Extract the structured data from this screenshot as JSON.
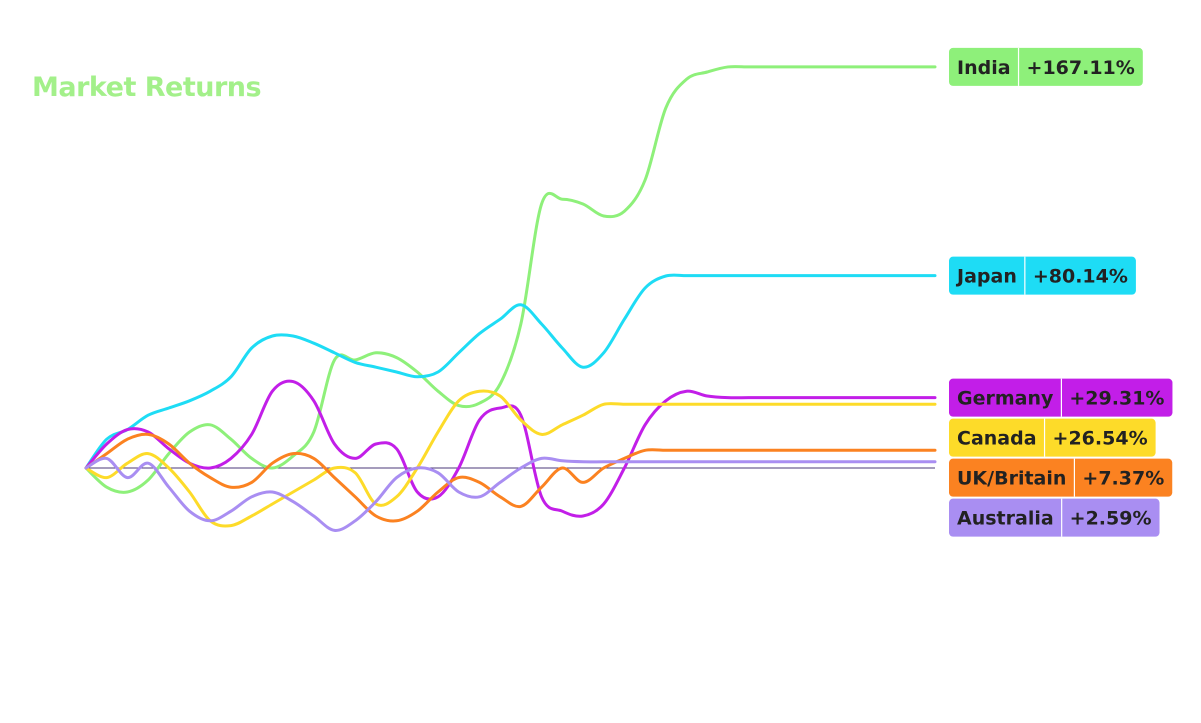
{
  "chart_data": {
    "type": "line",
    "title": "Market Returns",
    "title_color": "#a3f08a",
    "xlabel": "",
    "ylabel": "",
    "x": [
      0,
      1,
      2,
      3,
      4,
      5,
      6,
      7,
      8,
      9,
      10,
      11,
      12,
      13,
      14,
      15,
      16,
      17,
      18,
      19,
      20,
      21,
      22,
      23,
      24,
      25,
      26,
      27,
      28,
      29,
      30,
      31,
      32,
      33,
      34,
      35,
      36,
      37,
      38,
      39,
      40,
      41
    ],
    "ylim": [
      -45,
      180
    ],
    "grid": false,
    "zero_line": true,
    "legend": "end-of-line labels",
    "series": [
      {
        "name": "India",
        "label": "+167.11%",
        "color": "#8ef07a",
        "tag_color": "#8ef07a",
        "values": [
          0,
          -8,
          -10,
          -5,
          6,
          15,
          18,
          12,
          4,
          0,
          5,
          15,
          45,
          45,
          48,
          46,
          40,
          32,
          26,
          27,
          35,
          60,
          110,
          112,
          110,
          105,
          107,
          120,
          150,
          162,
          165,
          167.11,
          167.11,
          167.11,
          167.11,
          167.11,
          167.11,
          167.11,
          167.11,
          167.11,
          167.11,
          167.11
        ]
      },
      {
        "name": "Japan",
        "label": "+80.14%",
        "color": "#1edcf5",
        "tag_color": "#1edcf5",
        "values": [
          0,
          12,
          16,
          22,
          25,
          28,
          32,
          38,
          50,
          55,
          55,
          52,
          48,
          44,
          42,
          40,
          38,
          40,
          48,
          56,
          62,
          68,
          60,
          50,
          42,
          48,
          62,
          75,
          80,
          80.14,
          80.14,
          80.14,
          80.14,
          80.14,
          80.14,
          80.14,
          80.14,
          80.14,
          80.14,
          80.14,
          80.14,
          80.14
        ]
      },
      {
        "name": "Germany",
        "label": "+29.31%",
        "color": "#c21ee8",
        "tag_color": "#c21ee8",
        "values": [
          0,
          10,
          16,
          15,
          8,
          2,
          0,
          4,
          14,
          32,
          36,
          28,
          10,
          4,
          10,
          8,
          -10,
          -12,
          0,
          20,
          25,
          22,
          -12,
          -18,
          -20,
          -15,
          0,
          18,
          28,
          32,
          30,
          29.31,
          29.31,
          29.31,
          29.31,
          29.31,
          29.31,
          29.31,
          29.31,
          29.31,
          29.31,
          29.31
        ]
      },
      {
        "name": "Canada",
        "label": "+26.54%",
        "color": "#fddb29",
        "tag_color": "#fddb29",
        "values": [
          0,
          -4,
          2,
          6,
          0,
          -10,
          -22,
          -24,
          -20,
          -15,
          -10,
          -5,
          0,
          -2,
          -15,
          -12,
          0,
          15,
          28,
          32,
          30,
          20,
          14,
          18,
          22,
          26.54,
          26.54,
          26.54,
          26.54,
          26.54,
          26.54,
          26.54,
          26.54,
          26.54,
          26.54,
          26.54,
          26.54,
          26.54,
          26.54,
          26.54,
          26.54,
          26.54
        ]
      },
      {
        "name": "UK/Britain",
        "label": "+7.37%",
        "color": "#fb8221",
        "tag_color": "#fb8221",
        "values": [
          0,
          6,
          12,
          14,
          10,
          2,
          -4,
          -8,
          -6,
          2,
          6,
          4,
          -4,
          -12,
          -20,
          -22,
          -18,
          -10,
          -4,
          -6,
          -12,
          -16,
          -8,
          0,
          -6,
          0,
          4,
          7.37,
          7.37,
          7.37,
          7.37,
          7.37,
          7.37,
          7.37,
          7.37,
          7.37,
          7.37,
          7.37,
          7.37,
          7.37,
          7.37,
          7.37
        ]
      },
      {
        "name": "Australia",
        "label": "+2.59%",
        "color": "#a98ef2",
        "tag_color": "#a98ef2",
        "values": [
          0,
          4,
          -4,
          2,
          -8,
          -18,
          -22,
          -18,
          -12,
          -10,
          -14,
          -20,
          -26,
          -22,
          -14,
          -4,
          0,
          -2,
          -10,
          -12,
          -6,
          0,
          4,
          3,
          2.59,
          2.59,
          2.59,
          2.59,
          2.59,
          2.59,
          2.59,
          2.59,
          2.59,
          2.59,
          2.59,
          2.59,
          2.59,
          2.59,
          2.59,
          2.59,
          2.59,
          2.59
        ]
      }
    ]
  }
}
